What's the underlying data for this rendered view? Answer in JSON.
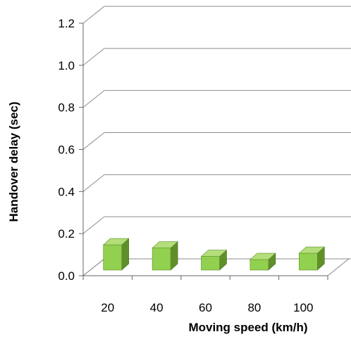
{
  "chart_data": {
    "type": "bar",
    "categories": [
      "20",
      "40",
      "60",
      "80",
      "100"
    ],
    "values": [
      0.12,
      0.105,
      0.065,
      0.05,
      0.08
    ],
    "xlabel": "Moving speed (km/h)",
    "ylabel": "Handover delay (sec)",
    "ylim": [
      0,
      1.2
    ],
    "yticks": [
      "0.0",
      "0.2",
      "0.4",
      "0.6",
      "0.8",
      "1.0",
      "1.2"
    ],
    "grid": true,
    "legend": "none",
    "style": "3d-column",
    "colors": {
      "bar_front": "#92d050",
      "bar_top": "#b3de7a",
      "bar_side": "#5f8f2a",
      "grid": "#8c8c8c",
      "axis": "#666666"
    }
  }
}
